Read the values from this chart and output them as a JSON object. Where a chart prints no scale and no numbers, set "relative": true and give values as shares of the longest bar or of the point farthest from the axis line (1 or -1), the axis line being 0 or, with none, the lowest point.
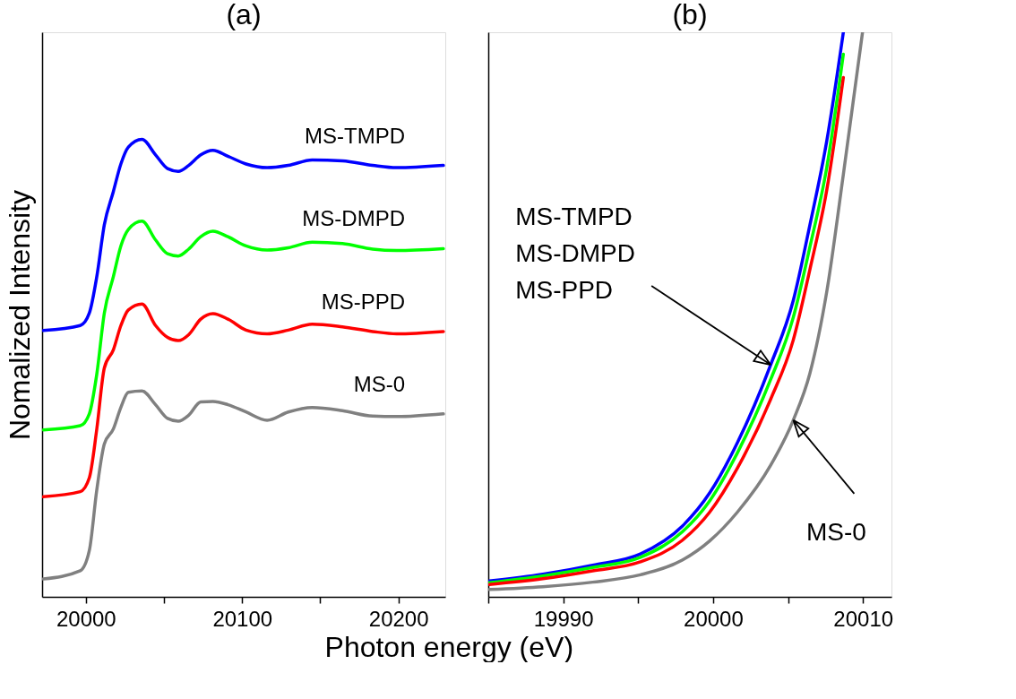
{
  "chart_data": [
    {
      "type": "line",
      "title": "(a)",
      "xlabel": "Photon energy (eV)",
      "ylabel": "Nomalized Intensity",
      "relative": true,
      "tick_labels": "x",
      "grid": false,
      "line_style": "solid",
      "marker": "none",
      "xlim": [
        19972,
        20230
      ],
      "xticks": [
        20000,
        {
          "value": 20050,
          "label": null
        },
        20100,
        {
          "value": 20150,
          "label": null
        },
        20200
      ],
      "x": [
        19972.8,
        19996.4,
        20002.2,
        20007.0,
        20011.8,
        20017.6,
        20022.4,
        20027.2,
        20035.9,
        20044.6,
        20052.3,
        20059.1,
        20065.8,
        20073.5,
        20081.3,
        20090.9,
        20102.5,
        20116.0,
        20129.5,
        20144.9,
        20164.2,
        20183.5,
        20198.9,
        20228.8
      ],
      "series": [
        {
          "name": "MS-TMPD",
          "color": "#0000ff",
          "values": [
            0.582,
            0.593,
            0.62,
            0.7,
            0.813,
            0.886,
            0.946,
            0.983,
            1.0,
            0.966,
            0.936,
            0.93,
            0.943,
            0.966,
            0.976,
            0.963,
            0.946,
            0.938,
            0.943,
            0.955,
            0.953,
            0.943,
            0.938,
            0.943
          ]
        },
        {
          "name": "MS-DMPD",
          "color": "#00ff00",
          "values": [
            0.365,
            0.374,
            0.4,
            0.487,
            0.62,
            0.7,
            0.767,
            0.803,
            0.821,
            0.78,
            0.75,
            0.745,
            0.76,
            0.787,
            0.799,
            0.787,
            0.767,
            0.758,
            0.763,
            0.775,
            0.772,
            0.76,
            0.757,
            0.761
          ]
        },
        {
          "name": "MS-PPD",
          "color": "#ff0000",
          "values": [
            0.219,
            0.23,
            0.26,
            0.367,
            0.5,
            0.54,
            0.593,
            0.627,
            0.64,
            0.593,
            0.567,
            0.56,
            0.573,
            0.607,
            0.619,
            0.607,
            0.583,
            0.575,
            0.583,
            0.596,
            0.59,
            0.58,
            0.575,
            0.58
          ]
        },
        {
          "name": "MS-0",
          "color": "#808080",
          "values": [
            0.039,
            0.057,
            0.101,
            0.234,
            0.334,
            0.367,
            0.414,
            0.447,
            0.45,
            0.42,
            0.39,
            0.384,
            0.397,
            0.426,
            0.427,
            0.42,
            0.404,
            0.386,
            0.404,
            0.414,
            0.407,
            0.395,
            0.394,
            0.4
          ]
        }
      ]
    },
    {
      "type": "line",
      "title": "(b)",
      "relative": true,
      "tick_labels": "x",
      "grid": false,
      "line_style": "solid",
      "marker": "none",
      "xlim": [
        19985,
        20011.9
      ],
      "xticks": [
        {
          "value": 19985,
          "label": null
        },
        19990,
        {
          "value": 19995,
          "label": null
        },
        20000,
        {
          "value": 20005,
          "label": null
        },
        20010
      ],
      "x": [
        19985.07,
        19988.64,
        19991.96,
        19995.15,
        19997.94,
        19999.77,
        20001.62,
        20003.84,
        20005.35,
        20006.46,
        20007.58,
        20008.69
      ],
      "series": [
        {
          "color": "#0000ff",
          "values": [
            0.028,
            0.04,
            0.056,
            0.076,
            0.125,
            0.184,
            0.273,
            0.411,
            0.525,
            0.659,
            0.807,
            1.0
          ]
        },
        {
          "color": "#00ff00",
          "values": [
            0.025,
            0.037,
            0.052,
            0.07,
            0.115,
            0.17,
            0.255,
            0.385,
            0.495,
            0.62,
            0.76,
            0.961
          ]
        },
        {
          "color": "#ff0000",
          "values": [
            0.022,
            0.032,
            0.046,
            0.062,
            0.1,
            0.15,
            0.228,
            0.35,
            0.455,
            0.58,
            0.72,
            0.92
          ]
        },
        {
          "color": "#808080",
          "x": [
            19985.07,
            19988.64,
            19991.96,
            19995.15,
            19997.94,
            19999.77,
            20001.62,
            20003.84,
            20005.35,
            20006.46,
            20007.58,
            20008.69,
            20009.97
          ],
          "values": [
            0.013,
            0.018,
            0.026,
            0.039,
            0.065,
            0.099,
            0.15,
            0.233,
            0.313,
            0.396,
            0.54,
            0.748,
            1.0
          ]
        }
      ],
      "annotations": [
        {
          "text": "MS-TMPD\nMS-DMPD\nMS-PPD",
          "x": 20003.84,
          "y": 0.411
        },
        {
          "text": "MS-0",
          "x": 20005.35,
          "y": 0.313
        }
      ]
    }
  ]
}
